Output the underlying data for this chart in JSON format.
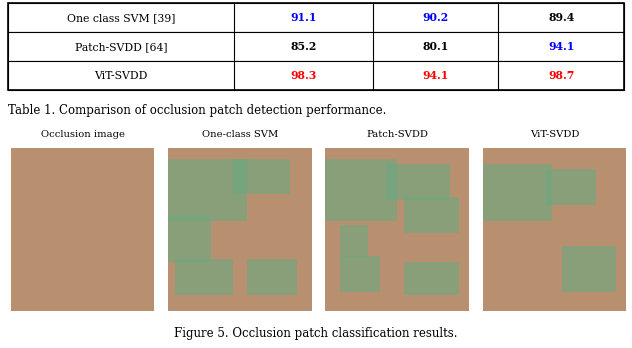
{
  "table_caption": "Table 1. Comparison of occlusion patch detection performance.",
  "figure_caption": "Figure 5. Occlusion patch classification results.",
  "table_data": [
    {
      "method": "One class SVM [39]",
      "v1": "91.1",
      "v2": "90.2",
      "v3": "89.4",
      "c1": "#0000ff",
      "c2": "#0000ff",
      "c3": "#000000"
    },
    {
      "method": "Patch-SVDD [64]",
      "v1": "85.2",
      "v2": "80.1",
      "v3": "94.1",
      "c1": "#000000",
      "c2": "#000000",
      "c3": "#0000ff"
    },
    {
      "method": "ViT-SVDD",
      "v1": "98.3",
      "v2": "94.1",
      "v3": "98.7",
      "c1": "#ff0000",
      "c2": "#ff0000",
      "c3": "#ff0000"
    }
  ],
  "image_labels": [
    "Occlusion image",
    "One-class SVM",
    "Patch-SVDD",
    "ViT-SVDD"
  ],
  "bg_color": "#ffffff",
  "face_color": "#b89070",
  "green_color": "#6aaa80",
  "green_alpha": 0.6
}
